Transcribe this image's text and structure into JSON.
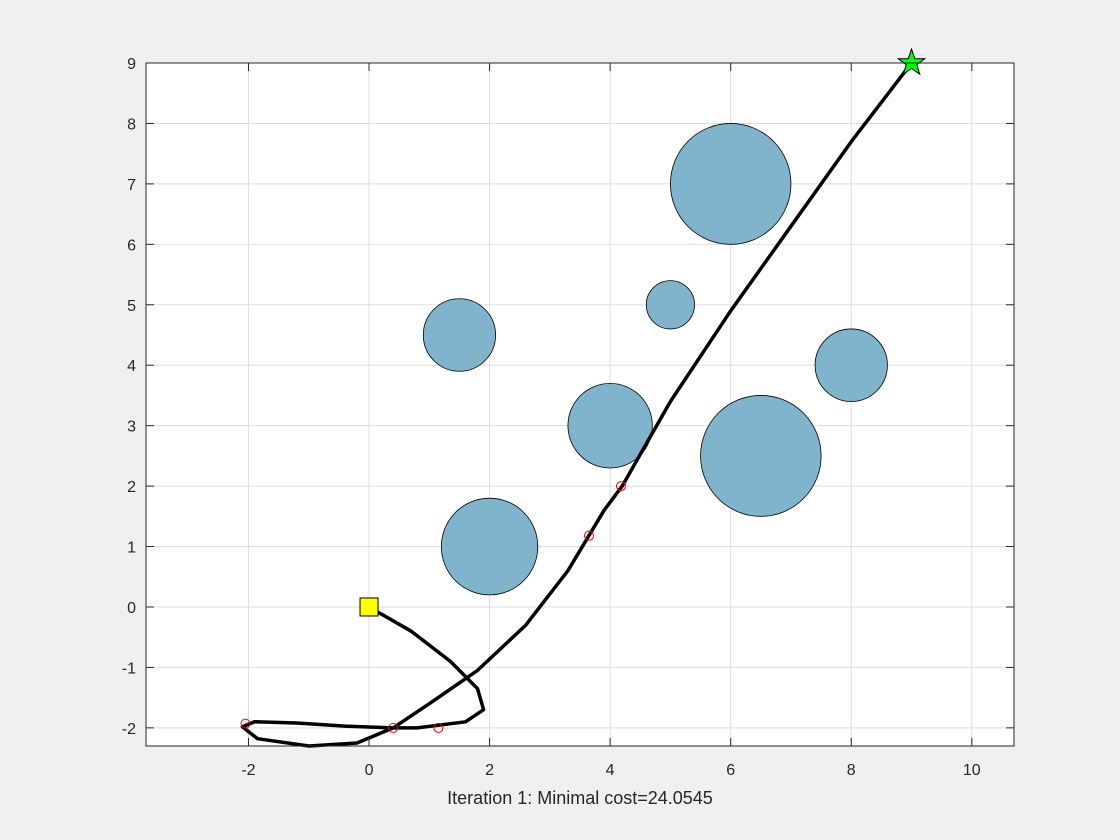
{
  "chart_data": {
    "type": "scatter",
    "xlabel": "Iteration 1: Minimal cost=24.0545",
    "xlim": [
      -3.7,
      10.7
    ],
    "ylim": [
      -2.3,
      9.0
    ],
    "x_ticks": [
      -2,
      0,
      2,
      4,
      6,
      8,
      10
    ],
    "x_tick_labels": [
      "-2",
      "0",
      "2",
      "4",
      "6",
      "8",
      "10"
    ],
    "y_ticks": [
      -2,
      -1,
      0,
      1,
      2,
      3,
      4,
      5,
      6,
      7,
      8,
      9
    ],
    "y_tick_labels": [
      "-2",
      "-1",
      "0",
      "1",
      "2",
      "3",
      "4",
      "5",
      "6",
      "7",
      "8",
      "9"
    ],
    "grid": true,
    "obstacles": [
      {
        "x": 2.0,
        "y": 1.0,
        "r": 0.8
      },
      {
        "x": 1.5,
        "y": 4.5,
        "r": 0.6
      },
      {
        "x": 4.0,
        "y": 3.0,
        "r": 0.7
      },
      {
        "x": 5.0,
        "y": 5.0,
        "r": 0.4
      },
      {
        "x": 6.0,
        "y": 7.0,
        "r": 1.0
      },
      {
        "x": 6.5,
        "y": 2.5,
        "r": 1.0
      },
      {
        "x": 8.0,
        "y": 4.0,
        "r": 0.6
      }
    ],
    "path": [
      [
        0.0,
        0.0
      ],
      [
        0.7,
        -0.4
      ],
      [
        1.35,
        -0.9
      ],
      [
        1.8,
        -1.35
      ],
      [
        1.9,
        -1.7
      ],
      [
        1.6,
        -1.9
      ],
      [
        0.8,
        -2.0
      ],
      [
        0.4,
        -2.0
      ],
      [
        -0.4,
        -1.97
      ],
      [
        -1.2,
        -1.92
      ],
      [
        -1.9,
        -1.9
      ],
      [
        -2.1,
        -1.98
      ],
      [
        -1.85,
        -2.18
      ],
      [
        -1.0,
        -2.3
      ],
      [
        -0.2,
        -2.25
      ],
      [
        0.4,
        -2.0
      ],
      [
        1.0,
        -1.6
      ],
      [
        1.8,
        -1.05
      ],
      [
        2.6,
        -0.3
      ],
      [
        3.3,
        0.6
      ],
      [
        3.9,
        1.6
      ],
      [
        4.2,
        2.0
      ],
      [
        5.0,
        3.4
      ],
      [
        6.0,
        4.9
      ],
      [
        7.0,
        6.3
      ],
      [
        8.0,
        7.7
      ],
      [
        9.0,
        9.0
      ]
    ],
    "waypoints": [
      [
        -2.05,
        -1.93
      ],
      [
        0.4,
        -2.0
      ],
      [
        1.15,
        -2.0
      ],
      [
        3.65,
        1.18
      ],
      [
        4.18,
        2.0
      ]
    ],
    "start": [
      0.0,
      0.0
    ],
    "goal": [
      9.0,
      9.0
    ],
    "colors": {
      "obstacle_fill": "#80b3cc",
      "path": "#000000",
      "waypoint": "#ff0000",
      "start": "#ffff00",
      "goal": "#00ff00"
    }
  }
}
